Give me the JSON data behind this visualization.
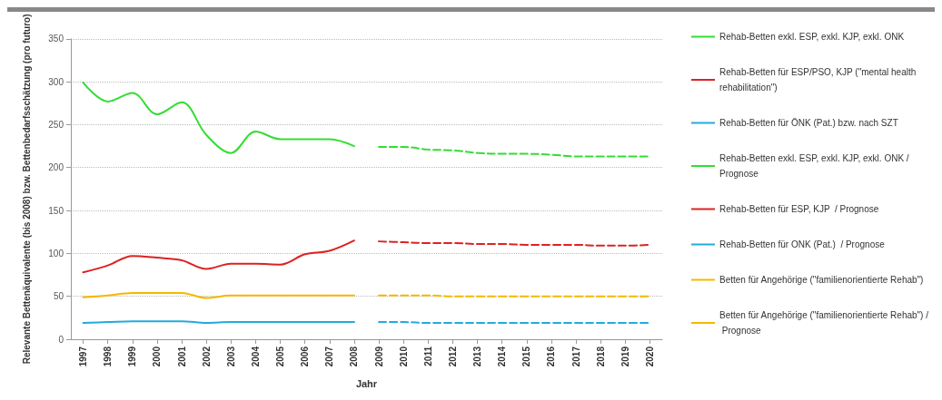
{
  "chart_data": {
    "type": "line",
    "xlabel": "Jahr",
    "ylabel": "Relevante Bettenäquivalente (bis 2008) bzw. Bettenbedarfsschätzung (pro futuro)",
    "categories": [
      "1997",
      "1998",
      "1999",
      "2000",
      "2001",
      "2002",
      "2003",
      "2004",
      "2005",
      "2006",
      "2007",
      "2008",
      "2009",
      "2010",
      "2011",
      "2012",
      "2013",
      "2014",
      "2015",
      "2016",
      "2017",
      "2018",
      "2019",
      "2020"
    ],
    "ylim": [
      0,
      350
    ],
    "yticks": [
      0,
      50,
      100,
      150,
      200,
      250,
      300,
      350
    ],
    "grid": "y",
    "legend": "right",
    "marker": "none",
    "series": [
      {
        "name": "Rehab-Betten exkl. ESP, exkl. KJP, exkl. ONK",
        "color": "#33dd33",
        "line_style": "solid",
        "values": [
          299,
          277,
          287,
          262,
          276,
          238,
          217,
          242,
          233,
          233,
          233,
          225,
          null,
          null,
          null,
          null,
          null,
          null,
          null,
          null,
          null,
          null,
          null,
          null
        ]
      },
      {
        "name": "Rehab-Betten für ESP/PSO, KJP (\"mental health rehabilitation\")",
        "color": "#dd2222",
        "line_style": "solid",
        "values": [
          78,
          86,
          97,
          95,
          92,
          82,
          88,
          88,
          87,
          99,
          103,
          115,
          null,
          null,
          null,
          null,
          null,
          null,
          null,
          null,
          null,
          null,
          null,
          null
        ]
      },
      {
        "name": "Rehab-Betten für ÖNK (Pat.) bzw. nach SZT",
        "color": "#22aadd",
        "line_style": "solid",
        "values": [
          19,
          20,
          21,
          21,
          21,
          19,
          20,
          20,
          20,
          20,
          20,
          20,
          null,
          null,
          null,
          null,
          null,
          null,
          null,
          null,
          null,
          null,
          null,
          null
        ]
      },
      {
        "name": "Rehab-Betten exkl. ESP, exkl. KJP, exkl. ONK / Prognose",
        "color": "#33dd33",
        "line_style": "dashed",
        "values": [
          null,
          null,
          null,
          null,
          null,
          null,
          null,
          null,
          null,
          null,
          null,
          null,
          224,
          224,
          221,
          220,
          217,
          216,
          216,
          215,
          213,
          213,
          213,
          213
        ]
      },
      {
        "name": "Rehab-Betten für ESP, KJP  / Prognose",
        "color": "#dd2222",
        "line_style": "dashed",
        "values": [
          null,
          null,
          null,
          null,
          null,
          null,
          null,
          null,
          null,
          null,
          null,
          null,
          114,
          113,
          112,
          112,
          111,
          111,
          110,
          110,
          110,
          109,
          109,
          110
        ]
      },
      {
        "name": "Rehab-Betten für ONK (Pat.)  / Prognose",
        "color": "#22aadd",
        "line_style": "dashed",
        "values": [
          null,
          null,
          null,
          null,
          null,
          null,
          null,
          null,
          null,
          null,
          null,
          null,
          20,
          20,
          19,
          19,
          19,
          19,
          19,
          19,
          19,
          19,
          19,
          19
        ]
      },
      {
        "name": "Betten für Angehörige (\"familienorientierte Rehab\")",
        "color": "#f5b800",
        "line_style": "solid",
        "values": [
          49,
          51,
          54,
          54,
          54,
          48,
          51,
          51,
          51,
          51,
          51,
          51,
          null,
          null,
          null,
          null,
          null,
          null,
          null,
          null,
          null,
          null,
          null,
          null
        ]
      },
      {
        "name": "Betten für Angehörige (\"familienorientierte Rehab\") / Prognose",
        "color": "#f5b800",
        "line_style": "dashed",
        "values": [
          null,
          null,
          null,
          null,
          null,
          null,
          null,
          null,
          null,
          null,
          null,
          null,
          51,
          51,
          51,
          50,
          50,
          50,
          50,
          50,
          50,
          50,
          50,
          50
        ]
      }
    ]
  }
}
